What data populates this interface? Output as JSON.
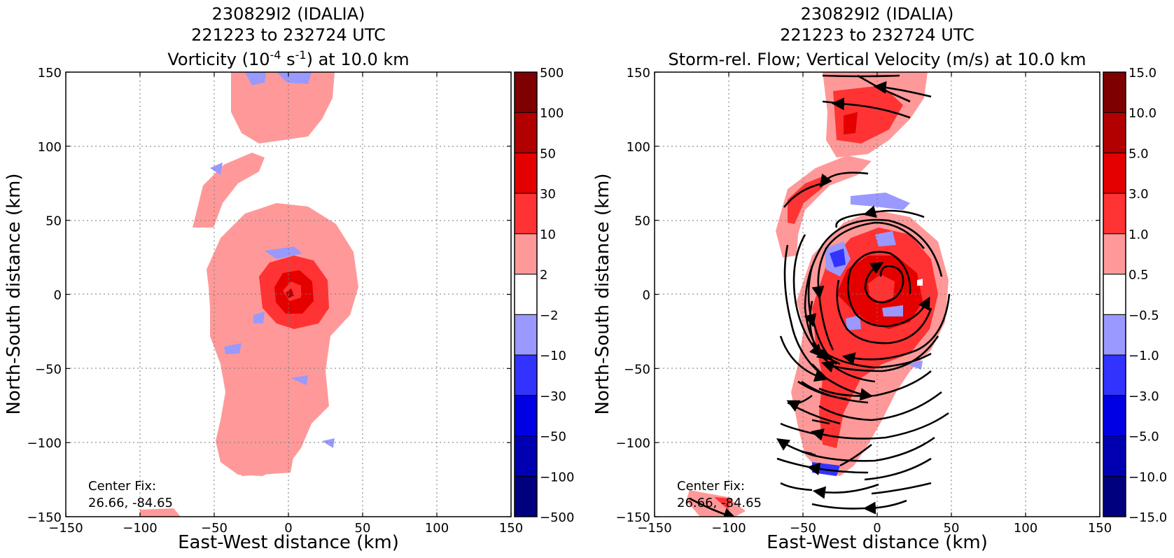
{
  "panels": [
    {
      "title_line1": "230829I2 (IDALIA)",
      "title_line2": "221223 to 232724 UTC",
      "title_line3_pre": "Vorticity (10",
      "title_line3_sup1": "-4",
      "title_line3_mid": " s",
      "title_line3_sup2": "-1",
      "title_line3_post": ") at 10.0 km",
      "center_fix_label": "Center Fix:",
      "center_fix_value": "26.66, -84.65"
    },
    {
      "title_line1": "230829I2 (IDALIA)",
      "title_line2": "221223 to 232724 UTC",
      "title_line3": "Storm-rel. Flow; Vertical Velocity (m/s) at 10.0 km",
      "center_fix_label": "Center Fix:",
      "center_fix_value": "26.66, -84.65"
    }
  ],
  "chart_data": [
    {
      "type": "heatmap",
      "variable": "vorticity",
      "xlabel": "East-West distance (km)",
      "ylabel": "North-South distance (km)",
      "xlim": [
        -150,
        150
      ],
      "ylim": [
        -150,
        150
      ],
      "xticks": [
        "−150",
        "−100",
        "−50",
        "0",
        "50",
        "100",
        "150"
      ],
      "yticks": [
        "150",
        "100",
        "50",
        "0",
        "−50",
        "−100",
        "−150"
      ],
      "grid": true,
      "colorbar_levels": [
        "500",
        "100",
        "50",
        "30",
        "10",
        "2",
        "−2",
        "−10",
        "−30",
        "−50",
        "−100",
        "−500"
      ],
      "colorbar_colors": [
        "#7f0000",
        "#b20000",
        "#e50000",
        "#ff3333",
        "#ff9999",
        "#ffffff",
        "#9999ff",
        "#3333ff",
        "#0000e5",
        "#0000b2",
        "#00007f"
      ],
      "center_km": [
        0,
        0
      ]
    },
    {
      "type": "heatmap",
      "variable": "vertical_velocity",
      "xlabel": "East-West distance (km)",
      "ylabel": "North-South distance (km)",
      "xlim": [
        -150,
        150
      ],
      "ylim": [
        -150,
        150
      ],
      "xticks": [
        "−150",
        "−100",
        "−50",
        "0",
        "50",
        "100",
        "150"
      ],
      "yticks": [
        "150",
        "100",
        "50",
        "0",
        "−50",
        "−100",
        "−150"
      ],
      "grid": true,
      "colorbar_levels": [
        "15.0",
        "10.0",
        "5.0",
        "3.0",
        "1.0",
        "0.5",
        "−0.5",
        "−1.0",
        "−3.0",
        "−5.0",
        "−10.0",
        "−15.0"
      ],
      "colorbar_colors": [
        "#7f0000",
        "#b20000",
        "#e50000",
        "#ff3333",
        "#ff9999",
        "#ffffff",
        "#9999ff",
        "#3333ff",
        "#0000e5",
        "#0000b2",
        "#00007f"
      ],
      "overlay": "storm-relative streamlines (cyclonic)"
    }
  ]
}
